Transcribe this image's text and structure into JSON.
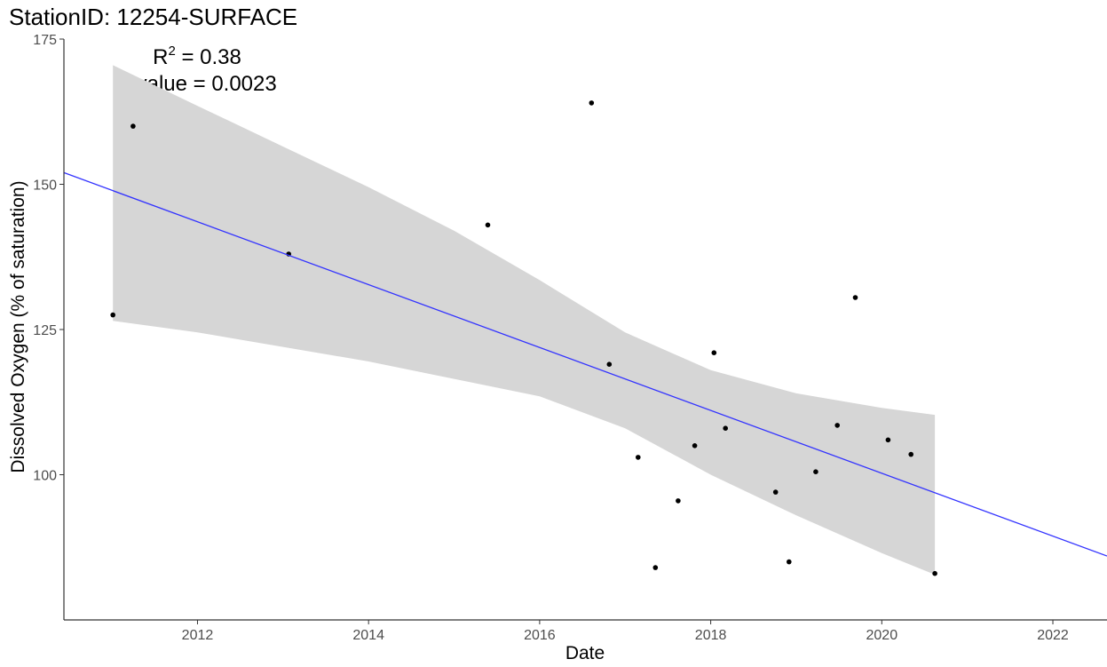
{
  "chart_data": {
    "type": "scatter",
    "title": "StationID: 12254-SURFACE",
    "annotation": {
      "r2_prefix": "R",
      "r2_sup": "2",
      "r2_rest": " = 0.38",
      "pvalue": "p-value = 0.0023"
    },
    "xlabel": "Date",
    "ylabel": "Dissolved Oxygen (% of saturation)",
    "xlim": [
      "2010-06-10",
      "2022-08-20"
    ],
    "ylim": [
      75,
      175
    ],
    "x_ticks": [
      "2012",
      "2014",
      "2016",
      "2018",
      "2020",
      "2022"
    ],
    "y_ticks": [
      "100",
      "125",
      "150",
      "175"
    ],
    "grid": false,
    "points": [
      {
        "x": "2011-01-05",
        "y": 127.5
      },
      {
        "x": "2011-04-01",
        "y": 160
      },
      {
        "x": "2013-01-25",
        "y": 138
      },
      {
        "x": "2015-05-25",
        "y": 143
      },
      {
        "x": "2016-08-10",
        "y": 164
      },
      {
        "x": "2016-10-25",
        "y": 119
      },
      {
        "x": "2017-02-25",
        "y": 103
      },
      {
        "x": "2017-05-10",
        "y": 84
      },
      {
        "x": "2017-08-15",
        "y": 95.5
      },
      {
        "x": "2017-10-25",
        "y": 105
      },
      {
        "x": "2018-01-15",
        "y": 121
      },
      {
        "x": "2018-03-05",
        "y": 108
      },
      {
        "x": "2018-10-05",
        "y": 97
      },
      {
        "x": "2018-12-01",
        "y": 85
      },
      {
        "x": "2019-03-25",
        "y": 100.5
      },
      {
        "x": "2019-06-25",
        "y": 108.5
      },
      {
        "x": "2019-09-10",
        "y": 130.5
      },
      {
        "x": "2020-01-28",
        "y": 106
      },
      {
        "x": "2020-05-05",
        "y": 103.5
      },
      {
        "x": "2020-08-15",
        "y": 83
      }
    ],
    "trend_line": {
      "color": "#3333ff",
      "points": [
        {
          "x": "2010-06-10",
          "y": 152
        },
        {
          "x": "2022-08-20",
          "y": 86
        }
      ]
    },
    "confidence_band": {
      "color": "#d6d6d6",
      "upper": [
        {
          "x": "2011-01-05",
          "y": 170.5
        },
        {
          "x": "2012-01-01",
          "y": 163.5
        },
        {
          "x": "2013-01-01",
          "y": 156.5
        },
        {
          "x": "2014-01-01",
          "y": 149.5
        },
        {
          "x": "2015-01-01",
          "y": 142
        },
        {
          "x": "2016-01-01",
          "y": 133.5
        },
        {
          "x": "2017-01-01",
          "y": 124.5
        },
        {
          "x": "2018-01-01",
          "y": 118
        },
        {
          "x": "2019-01-01",
          "y": 114
        },
        {
          "x": "2020-01-01",
          "y": 111.5
        },
        {
          "x": "2020-08-15",
          "y": 110.3
        }
      ],
      "lower": [
        {
          "x": "2011-01-05",
          "y": 126.5
        },
        {
          "x": "2012-01-01",
          "y": 124.5
        },
        {
          "x": "2013-01-01",
          "y": 122
        },
        {
          "x": "2014-01-01",
          "y": 119.5
        },
        {
          "x": "2015-01-01",
          "y": 116.5
        },
        {
          "x": "2016-01-01",
          "y": 113.5
        },
        {
          "x": "2017-01-01",
          "y": 108
        },
        {
          "x": "2018-01-01",
          "y": 100
        },
        {
          "x": "2019-01-01",
          "y": 93
        },
        {
          "x": "2020-01-01",
          "y": 86.5
        },
        {
          "x": "2020-08-15",
          "y": 82.8
        }
      ]
    },
    "point_color": "#000000",
    "axis_color": "#333333"
  }
}
